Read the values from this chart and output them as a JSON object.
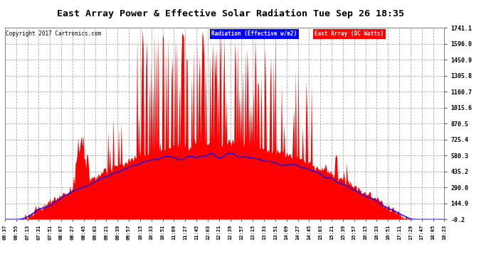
{
  "title": "East Array Power & Effective Solar Radiation Tue Sep 26 18:35",
  "copyright": "Copyright 2017 Cartronics.com",
  "legend_radiation": "Radiation (Effective w/m2)",
  "legend_array": "East Array (DC Watts)",
  "ymin": -0.2,
  "ymax": 1741.1,
  "yticks": [
    1741.1,
    1596.0,
    1450.9,
    1305.8,
    1160.7,
    1015.6,
    870.5,
    725.4,
    580.3,
    435.2,
    290.0,
    144.9,
    -0.2
  ],
  "plot_bg": "#ffffff",
  "fig_bg": "#ffffff",
  "grid_color": "#aaaaaa",
  "radiation_color": "#0000ff",
  "array_color": "#ff0000",
  "x_labels": [
    "06:37",
    "06:55",
    "07:13",
    "07:31",
    "07:51",
    "08:07",
    "08:27",
    "08:45",
    "09:03",
    "09:21",
    "09:39",
    "09:57",
    "10:15",
    "10:33",
    "10:51",
    "11:09",
    "11:27",
    "11:45",
    "12:03",
    "12:21",
    "12:39",
    "12:57",
    "13:15",
    "13:33",
    "13:51",
    "14:09",
    "14:27",
    "14:45",
    "15:03",
    "15:21",
    "15:39",
    "15:57",
    "16:15",
    "16:33",
    "16:51",
    "17:11",
    "17:29",
    "17:47",
    "18:05",
    "18:23"
  ]
}
